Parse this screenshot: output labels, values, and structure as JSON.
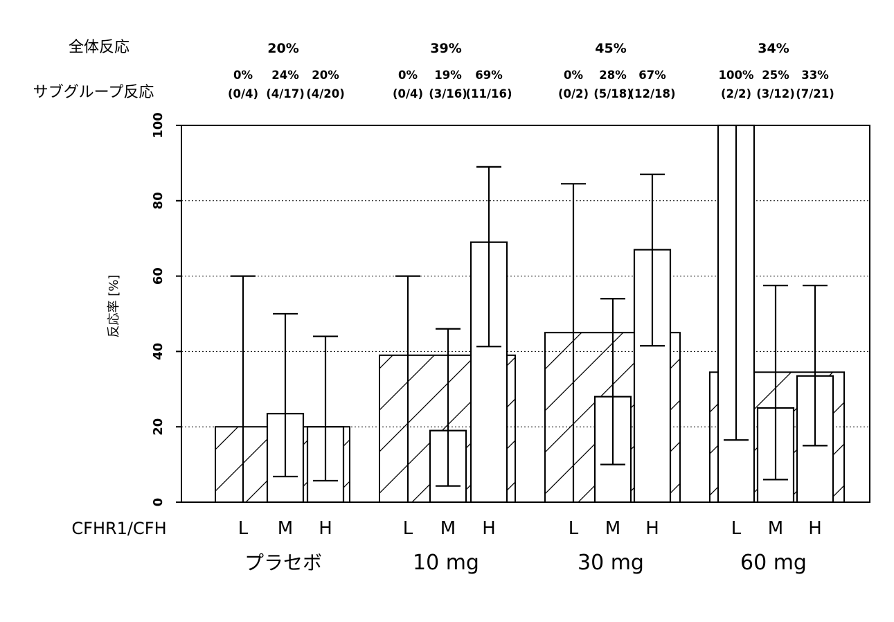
{
  "chart_data": {
    "type": "bar",
    "ylabel": "反応率 [%]",
    "xlabel": "CFHR1/CFH",
    "ylim": [
      0,
      100
    ],
    "yticks": [
      0,
      20,
      40,
      60,
      80,
      100
    ],
    "grid": "horizontal-dotted",
    "row_labels": {
      "overall": "全体反応",
      "subgroup": "サブグループ反応"
    },
    "groups": [
      {
        "name": "プラセボ",
        "overall_label": "20%",
        "overall_value": 20,
        "subgroups": [
          {
            "level": "L",
            "pct_label": "0%",
            "count_label": "(0/4)",
            "value": 0,
            "ci": [
              0,
              60
            ]
          },
          {
            "level": "M",
            "pct_label": "24%",
            "count_label": "(4/17)",
            "value": 23.5,
            "ci": [
              6.8,
              50
            ]
          },
          {
            "level": "H",
            "pct_label": "20%",
            "count_label": "(4/20)",
            "value": 20,
            "ci": [
              5.7,
              44
            ]
          }
        ]
      },
      {
        "name": "10 mg",
        "overall_label": "39%",
        "overall_value": 39,
        "subgroups": [
          {
            "level": "L",
            "pct_label": "0%",
            "count_label": "(0/4)",
            "value": 0,
            "ci": [
              0,
              60
            ]
          },
          {
            "level": "M",
            "pct_label": "19%",
            "count_label": "(3/16)",
            "value": 19,
            "ci": [
              4.3,
              46
            ]
          },
          {
            "level": "H",
            "pct_label": "69%",
            "count_label": "(11/16)",
            "value": 69,
            "ci": [
              41.3,
              89
            ]
          }
        ]
      },
      {
        "name": "30 mg",
        "overall_label": "45%",
        "overall_value": 45,
        "subgroups": [
          {
            "level": "L",
            "pct_label": "0%",
            "count_label": "(0/2)",
            "value": 0,
            "ci": [
              0,
              84.5
            ]
          },
          {
            "level": "M",
            "pct_label": "28%",
            "count_label": "(5/18)",
            "value": 28,
            "ci": [
              10,
              54
            ]
          },
          {
            "level": "H",
            "pct_label": "67%",
            "count_label": "(12/18)",
            "value": 67,
            "ci": [
              41.5,
              87
            ]
          }
        ]
      },
      {
        "name": "60 mg",
        "overall_label": "34%",
        "overall_value": 34.5,
        "subgroups": [
          {
            "level": "L",
            "pct_label": "100%",
            "count_label": "(2/2)",
            "value": 100,
            "ci": [
              16.5,
              100
            ]
          },
          {
            "level": "M",
            "pct_label": "25%",
            "count_label": "(3/12)",
            "value": 25,
            "ci": [
              6,
              57.5
            ]
          },
          {
            "level": "H",
            "pct_label": "33%",
            "count_label": "(7/21)",
            "value": 33.5,
            "ci": [
              15,
              57.5
            ]
          }
        ]
      }
    ]
  }
}
